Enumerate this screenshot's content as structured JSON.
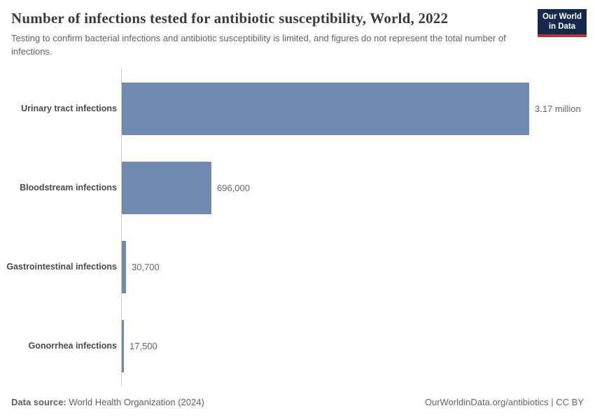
{
  "chart_data": {
    "type": "bar",
    "orientation": "horizontal",
    "title": "Number of infections tested for antibiotic susceptibility, World, 2022",
    "subtitle": "Testing to confirm bacterial infections and antibiotic susceptibility is limited, and figures do not represent the total number of infections.",
    "categories": [
      "Urinary tract infections",
      "Bloodstream infections",
      "Gastrointestinal infections",
      "Gonorrhea infections"
    ],
    "values": [
      3170000,
      696000,
      30700,
      17500
    ],
    "value_labels": [
      "3.17 million",
      "696,000",
      "30,700",
      "17,500"
    ],
    "xlim": [
      0,
      3170000
    ],
    "xlabel": "",
    "ylabel": "",
    "grid": false,
    "legend": "none",
    "bar_color": "#7089b1",
    "axis_line_color": "#cccccc"
  },
  "logo": {
    "line1": "Our World",
    "line2": "in Data",
    "bg_color": "#14294b",
    "accent_color": "#bf352c"
  },
  "footer": {
    "datasource_label": "Data source:",
    "datasource_value": "World Health Organization (2024)",
    "credit": "OurWorldinData.org/antibiotics | CC BY"
  }
}
